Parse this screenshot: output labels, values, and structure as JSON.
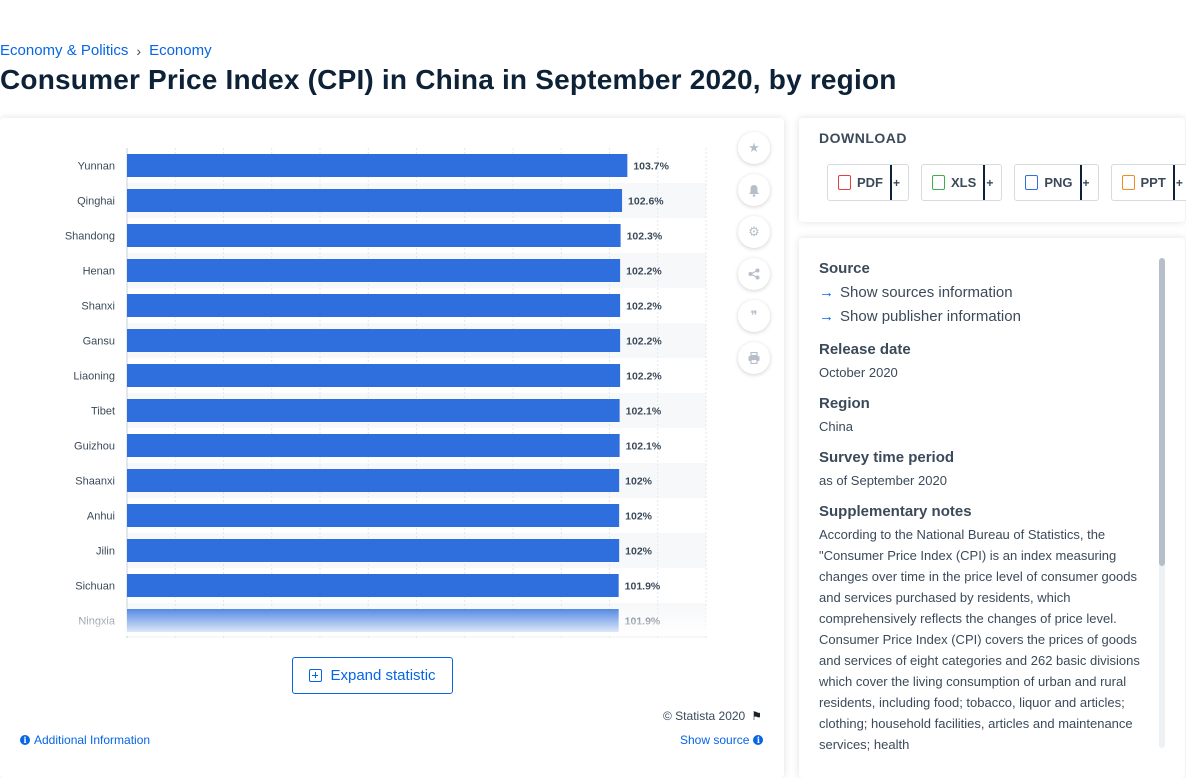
{
  "breadcrumb": {
    "items": [
      "Economy & Politics",
      "Economy"
    ],
    "separator": "›"
  },
  "page_title": "Consumer Price Index (CPI) in China in September 2020, by region",
  "chart_data": {
    "type": "bar",
    "orientation": "horizontal",
    "categories": [
      "Yunnan",
      "Qinghai",
      "Shandong",
      "Henan",
      "Shanxi",
      "Gansu",
      "Liaoning",
      "Tibet",
      "Guizhou",
      "Shaanxi",
      "Anhui",
      "Jilin",
      "Sichuan",
      "Ningxia"
    ],
    "values": [
      103.7,
      102.6,
      102.3,
      102.2,
      102.2,
      102.2,
      102.2,
      102.1,
      102.1,
      102,
      102,
      102,
      101.9,
      101.9
    ],
    "data_labels": [
      "103.7%",
      "102.6%",
      "102.3%",
      "102.2%",
      "102.2%",
      "102.2%",
      "102.2%",
      "102.1%",
      "102.1%",
      "102%",
      "102%",
      "102%",
      "101.9%",
      "101.9%"
    ],
    "xlim": [
      0,
      120
    ],
    "grid": true,
    "bar_color": "#2f6fdd"
  },
  "tools": {
    "icons": [
      "star-icon",
      "bell-icon",
      "gear-icon",
      "share-icon",
      "quote-icon",
      "print-icon"
    ]
  },
  "expand_label": "Expand statistic",
  "copyright": "© Statista 2020",
  "additional_info": "Additional Information",
  "show_source": "Show source",
  "download": {
    "title": "DOWNLOAD",
    "buttons": [
      {
        "label": "PDF",
        "color": "#e23f3f"
      },
      {
        "label": "XLS",
        "color": "#3fae49"
      },
      {
        "label": "PNG",
        "color": "#2f6fdd"
      },
      {
        "label": "PPT",
        "color": "#f08a24"
      }
    ],
    "plus": "+"
  },
  "meta": {
    "source_heading": "Source",
    "show_sources": "Show sources information",
    "show_publisher": "Show publisher information",
    "release_heading": "Release date",
    "release_value": "October 2020",
    "region_heading": "Region",
    "region_value": "China",
    "survey_heading": "Survey time period",
    "survey_value": "as of September 2020",
    "notes_heading": "Supplementary notes",
    "notes_value": "According to the National Bureau of Statistics, the \"Consumer Price Index (CPI) is an index measuring changes over time in the price level of consumer goods and services purchased by residents, which comprehensively reflects the changes of price level. Consumer Price Index (CPI) covers the prices of goods and services of eight categories and 262 basic divisions which cover the living consumption of urban and rural residents, including food; tobacco, liquor and articles; clothing; household facilities, articles and maintenance services; health"
  }
}
